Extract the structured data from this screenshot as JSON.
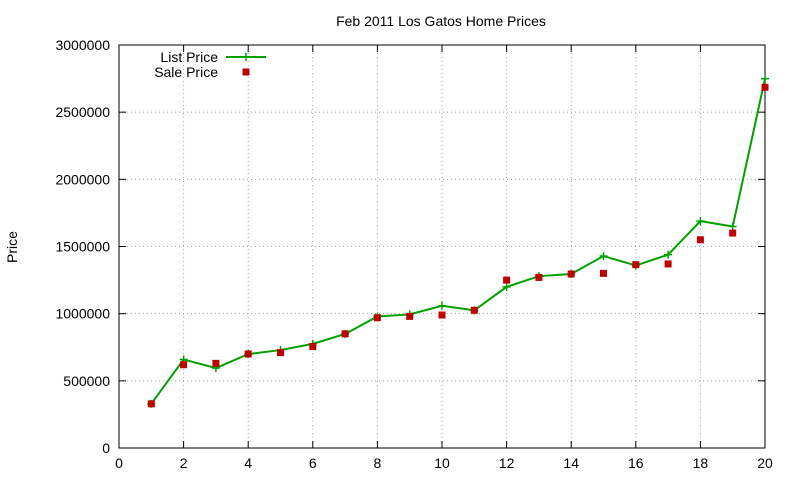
{
  "chart_data": {
    "type": "line",
    "title": "Feb 2011 Los Gatos Home Prices",
    "xlabel": "",
    "ylabel": "Price",
    "xlim": [
      0,
      20
    ],
    "ylim": [
      0,
      3000000
    ],
    "x_ticks": [
      "0",
      "2",
      "4",
      "6",
      "8",
      "10",
      "12",
      "14",
      "16",
      "18",
      "20"
    ],
    "y_ticks": [
      "0",
      "500000",
      "1000000",
      "1500000",
      "2000000",
      "2500000",
      "3000000"
    ],
    "grid": true,
    "legend_position": "top-left",
    "x": [
      1,
      2,
      3,
      4,
      5,
      6,
      7,
      8,
      9,
      10,
      11,
      12,
      13,
      14,
      15,
      16,
      17,
      18,
      19,
      20
    ],
    "series": [
      {
        "name": "List Price",
        "style": "line-with-plus-markers",
        "color": "#00a000",
        "values": [
          329000,
          659000,
          595000,
          699000,
          729000,
          775000,
          849000,
          979000,
          995000,
          1059000,
          1025000,
          1199000,
          1279000,
          1295000,
          1429000,
          1359000,
          1439000,
          1689000,
          1649000,
          2749000
        ]
      },
      {
        "name": "Sale Price",
        "style": "square-markers",
        "color": "#c00000",
        "values": [
          329000,
          620000,
          630000,
          700000,
          710000,
          755000,
          850000,
          970000,
          980000,
          990000,
          1025000,
          1250000,
          1270000,
          1295000,
          1300000,
          1365000,
          1370000,
          1550000,
          1600000,
          2685000
        ]
      }
    ]
  }
}
